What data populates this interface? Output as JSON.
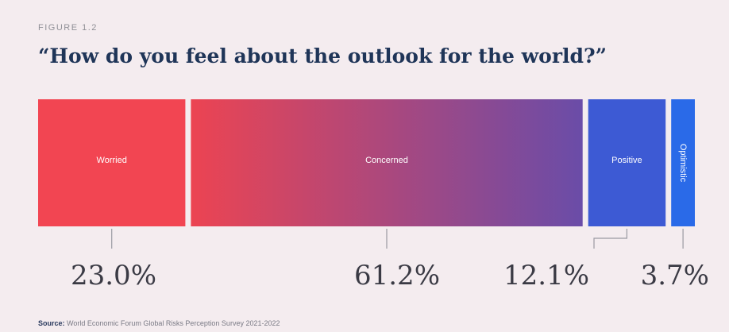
{
  "figure_label": "FIGURE 1.2",
  "title": "“How do you feel about the outlook for the world?”",
  "source_label": "Source:",
  "source_text": "World Economic Forum Global Risks Perception Survey 2021-2022",
  "colors": {
    "background": "#f4ecef",
    "worried": "#f24552",
    "concerned_start": "#ec4452",
    "concerned_end": "#6a4ca8",
    "positive": "#3d5ad4",
    "optimistic": "#2a6ae8",
    "pct_text": "#3a3a44",
    "leader": "#9a9aa2"
  },
  "chart_data": {
    "type": "bar",
    "orientation": "stacked-horizontal-100",
    "categories": [
      "Worried",
      "Concerned",
      "Positive",
      "Optimistic"
    ],
    "values": [
      23.0,
      61.2,
      12.1,
      3.7
    ],
    "value_labels": [
      "23.0%",
      "61.2%",
      "12.1%",
      "3.7%"
    ],
    "unit": "%",
    "title": "“How do you feel about the outlook for the world?”",
    "grid": false,
    "legend": "none"
  }
}
